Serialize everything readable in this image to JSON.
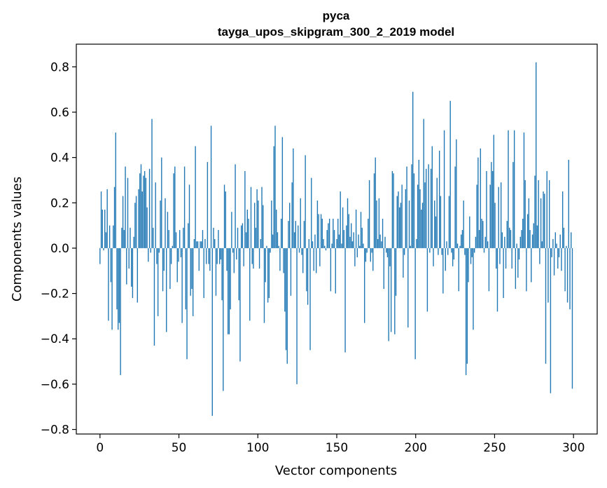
{
  "chart_data": {
    "type": "bar",
    "title": "pyca",
    "subtitle": "tayga_upos_skipgram_300_2_2019 model",
    "xlabel": "Vector components",
    "ylabel": "Components values",
    "xlim": [
      -15,
      315
    ],
    "ylim": [
      -0.82,
      0.9
    ],
    "x_ticks": [
      0,
      50,
      100,
      150,
      200,
      250,
      300
    ],
    "y_ticks": [
      -0.8,
      -0.6,
      -0.4,
      -0.2,
      0.0,
      0.2,
      0.4,
      0.6,
      0.8
    ],
    "y_tick_labels": [
      "−0.8",
      "−0.6",
      "−0.4",
      "−0.2",
      "0.0",
      "0.2",
      "0.4",
      "0.6",
      "0.8"
    ],
    "x_tick_labels": [
      "0",
      "50",
      "100",
      "150",
      "200",
      "250",
      "300"
    ],
    "bar_color": "#1f77b4",
    "grid": false,
    "values": [
      -0.07,
      0.25,
      0.17,
      -0.01,
      0.17,
      0.07,
      0.26,
      -0.32,
      0.1,
      -0.15,
      -0.36,
      0.1,
      0.27,
      0.51,
      -0.27,
      -0.36,
      -0.33,
      -0.56,
      0.09,
      0.23,
      0.08,
      0.36,
      -0.16,
      0.31,
      -0.09,
      0.09,
      -0.17,
      -0.22,
      0.05,
      0.2,
      0.23,
      -0.24,
      0.26,
      0.33,
      0.37,
      0.25,
      0.32,
      0.34,
      0.31,
      0.18,
      -0.06,
      0.35,
      -0.02,
      0.57,
      0.09,
      -0.43,
      0.29,
      -0.07,
      -0.3,
      -0.02,
      0.21,
      0.4,
      -0.19,
      -0.1,
      0.22,
      -0.37,
      0.16,
      0.08,
      -0.18,
      -0.07,
      0.01,
      0.33,
      0.36,
      0.07,
      -0.15,
      -0.06,
      0.08,
      -0.04,
      -0.33,
      0.09,
      0.36,
      -0.27,
      -0.49,
      0.11,
      0.28,
      -0.21,
      -0.18,
      -0.3,
      0.04,
      0.45,
      0.03,
      0.03,
      -0.1,
      0.03,
      0.03,
      0.08,
      -0.22,
      0.04,
      -0.07,
      0.38,
      -0.07,
      -0.1,
      0.54,
      -0.74,
      0.09,
      0.04,
      -0.21,
      -0.07,
      0.08,
      -0.07,
      -0.05,
      -0.23,
      -0.63,
      0.28,
      0.25,
      -0.1,
      -0.38,
      -0.38,
      -0.27,
      0.16,
      -0.02,
      -0.11,
      0.37,
      -0.05,
      0.09,
      -0.23,
      -0.5,
      0.1,
      0.11,
      -0.08,
      0.34,
      0.07,
      0.17,
      0.13,
      -0.32,
      0.27,
      -0.07,
      -0.09,
      0.2,
      0.09,
      0.26,
      0.21,
      -0.09,
      0.04,
      0.27,
      0.19,
      -0.33,
      -0.15,
      0.01,
      -0.24,
      -0.22,
      -0.02,
      0.21,
      0.06,
      0.45,
      0.54,
      0.17,
      0.07,
      0.01,
      -0.1,
      0.13,
      0.49,
      -0.11,
      -0.28,
      -0.45,
      -0.51,
      0.12,
      0.2,
      -0.21,
      0.29,
      0.44,
      0.07,
      0.12,
      -0.6,
      0.1,
      -0.02,
      0.22,
      -0.03,
      -0.11,
      0.12,
      0.41,
      -0.19,
      -0.25,
      0.04,
      -0.45,
      0.31,
      0.03,
      -0.1,
      0.06,
      -0.11,
      0.21,
      0.15,
      -0.08,
      0.15,
      0.13,
      0.04,
      0.01,
      -0.01,
      0.08,
      0.11,
      0.13,
      -0.19,
      0.02,
      0.13,
      0.08,
      -0.2,
      0.04,
      0.13,
      0.06,
      0.25,
      0.02,
      0.18,
      0.08,
      -0.46,
      0.1,
      0.22,
      0.15,
      0.05,
      0.11,
      0.03,
      0.07,
      -0.08,
      0.17,
      -0.04,
      0.06,
      0.01,
      0.16,
      0.09,
      0.02,
      -0.33,
      -0.06,
      -0.02,
      0.13,
      0.3,
      -0.06,
      -0.02,
      -0.1,
      0.33,
      0.4,
      0.21,
      0.04,
      0.22,
      0.06,
      0.03,
      0.13,
      -0.18,
      0.05,
      -0.02,
      -0.04,
      -0.41,
      -0.08,
      -0.37,
      0.34,
      0.33,
      -0.38,
      -0.21,
      0.23,
      0.25,
      0.18,
      0.2,
      0.28,
      -0.13,
      -0.03,
      0.26,
      0.36,
      -0.35,
      0.21,
      0.01,
      0.37,
      0.69,
      0.33,
      -0.49,
      0.04,
      0.28,
      0.39,
      0.26,
      0.17,
      0.2,
      0.57,
      0.29,
      0.35,
      -0.28,
      0.37,
      -0.02,
      0.35,
      0.45,
      -0.08,
      0.21,
      0.14,
      0.31,
      -0.03,
      0.43,
      0.23,
      -0.03,
      -0.2,
      0.52,
      -0.1,
      0.03,
      -0.03,
      0.23,
      0.65,
      -0.02,
      -0.08,
      -0.05,
      0.36,
      0.48,
      0.02,
      -0.19,
      0.01,
      0.06,
      0.08,
      0.21,
      -0.03,
      -0.56,
      -0.51,
      -0.15,
      0.14,
      -0.07,
      -0.04,
      -0.36,
      -0.02,
      0.05,
      0.28,
      0.4,
      0.08,
      0.44,
      0.13,
      0.12,
      -0.02,
      0.05,
      0.34,
      0.03,
      -0.19,
      0.28,
      0.38,
      0.34,
      0.5,
      0.2,
      -0.09,
      -0.28,
      0.27,
      -0.07,
      0.29,
      0.07,
      -0.22,
      0.05,
      -0.09,
      0.12,
      0.52,
      0.09,
      0.08,
      -0.09,
      0.38,
      0.52,
      -0.18,
      0.02,
      -0.13,
      -0.05,
      0.05,
      0.08,
      0.13,
      0.51,
      0.3,
      -0.19,
      0.15,
      0.22,
      0.08,
      -0.15,
      0.06,
      0.11,
      0.32,
      0.82,
      0.1,
      0.3,
      -0.07,
      0.22,
      0.03,
      0.25,
      0.24,
      -0.51,
      0.34,
      -0.24,
      0.3,
      -0.64,
      -0.04,
      0.04,
      -0.12,
      0.07,
      0.02,
      -0.09,
      -0.04,
      0.06,
      -0.1,
      0.25,
      0.09,
      -0.19,
      0.01,
      -0.24,
      0.39,
      -0.27,
      0.07,
      -0.62
    ]
  }
}
